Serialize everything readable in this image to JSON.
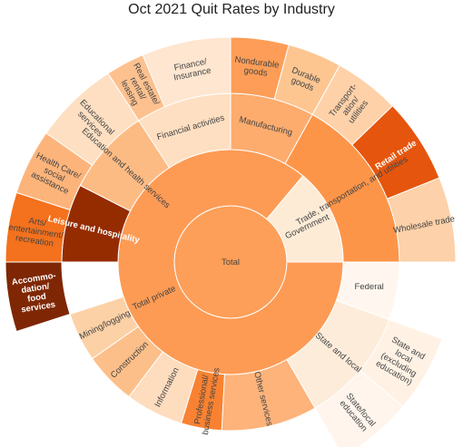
{
  "chart_data": {
    "type": "sunburst",
    "title": "Oct 2021 Quit Rates by Industry",
    "root": {
      "label": "Total",
      "color": "#fd9f58",
      "children": [
        {
          "label": "Total private",
          "color": "#fd9b55",
          "value": 4.5,
          "children": [
            {
              "label": "Financial activities",
              "color": "#fedfc2",
              "value": 2.1,
              "children": [
                {
                  "label": "Finance/\nInsurance",
                  "color": "#fee6d0",
                  "value": 1.0
                },
                {
                  "label": "Real estate/\nrental/\nleasing",
                  "color": "#fdc18f",
                  "value": 1.1
                }
              ]
            },
            {
              "label": "Manufacturing",
              "color": "#fdac6e",
              "value": 2.9,
              "children": [
                {
                  "label": "Nondurable\ngoods",
                  "color": "#fd9d57",
                  "value": 1.4
                },
                {
                  "label": "Durable\ngoods",
                  "color": "#fdc691",
                  "value": 1.5
                }
              ]
            },
            {
              "label": "Trade, transportation, and utilities",
              "color": "#fd9549",
              "value": 4.4,
              "children": [
                {
                  "label": "Transport-\nation/\nutilities",
                  "color": "#fed1a9",
                  "value": 1.1
                },
                {
                  "label": "Retail trade",
                  "color": "#e6550d",
                  "value": 2.2
                },
                {
                  "label": "Wholesale trade",
                  "color": "#fdd1a9",
                  "value": 1.1
                }
              ]
            },
            {
              "label": "Leisure and hospitality",
              "color": "#952c00",
              "value": 6.4,
              "children": [
                {
                  "label": "Accommo-\ndation/\nfood\nservices",
                  "color": "#7f2704",
                  "value": 3.6
                },
                {
                  "label": "Arts/\nentertainment/\nrecreation",
                  "color": "#f4711d",
                  "value": 2.2
                }
              ]
            },
            {
              "label": "Education and health services",
              "color": "#fdbb84",
              "value": 3.5,
              "children": [
                {
                  "label": "Health Care/\nsocial\nassistance",
                  "color": "#fdb47a",
                  "value": 2.1
                },
                {
                  "label": "Educational\nservices",
                  "color": "#fedfc2",
                  "value": 1.4
                }
              ]
            },
            {
              "label": "Mining/logging",
              "color": "#fdd1a6",
              "value": 1.5
            },
            {
              "label": "Construction",
              "color": "#fdbf89",
              "value": 1.7
            },
            {
              "label": "Information",
              "color": "#fedcbe",
              "value": 1.9
            },
            {
              "label": "Professional/\nbusiness services",
              "color": "#f98232",
              "value": 1.8
            },
            {
              "label": "Other services",
              "color": "#fdb37a",
              "value": 1.9
            }
          ]
        },
        {
          "label": "Government",
          "color": "#feebd6",
          "value": 1.8,
          "children": [
            {
              "label": "Federal",
              "color": "#fff7ef",
              "value": 0.7
            },
            {
              "label": "State and local",
              "color": "#feecda",
              "value": 1.3,
              "children": [
                {
                  "label": "State and\nlocal\n(excluding\neducation)",
                  "color": "#fff2e5",
                  "value": 1.1
                },
                {
                  "label": "State/local\neducation",
                  "color": "#fff5ec",
                  "value": 1.0
                }
              ]
            }
          ]
        }
      ]
    }
  }
}
